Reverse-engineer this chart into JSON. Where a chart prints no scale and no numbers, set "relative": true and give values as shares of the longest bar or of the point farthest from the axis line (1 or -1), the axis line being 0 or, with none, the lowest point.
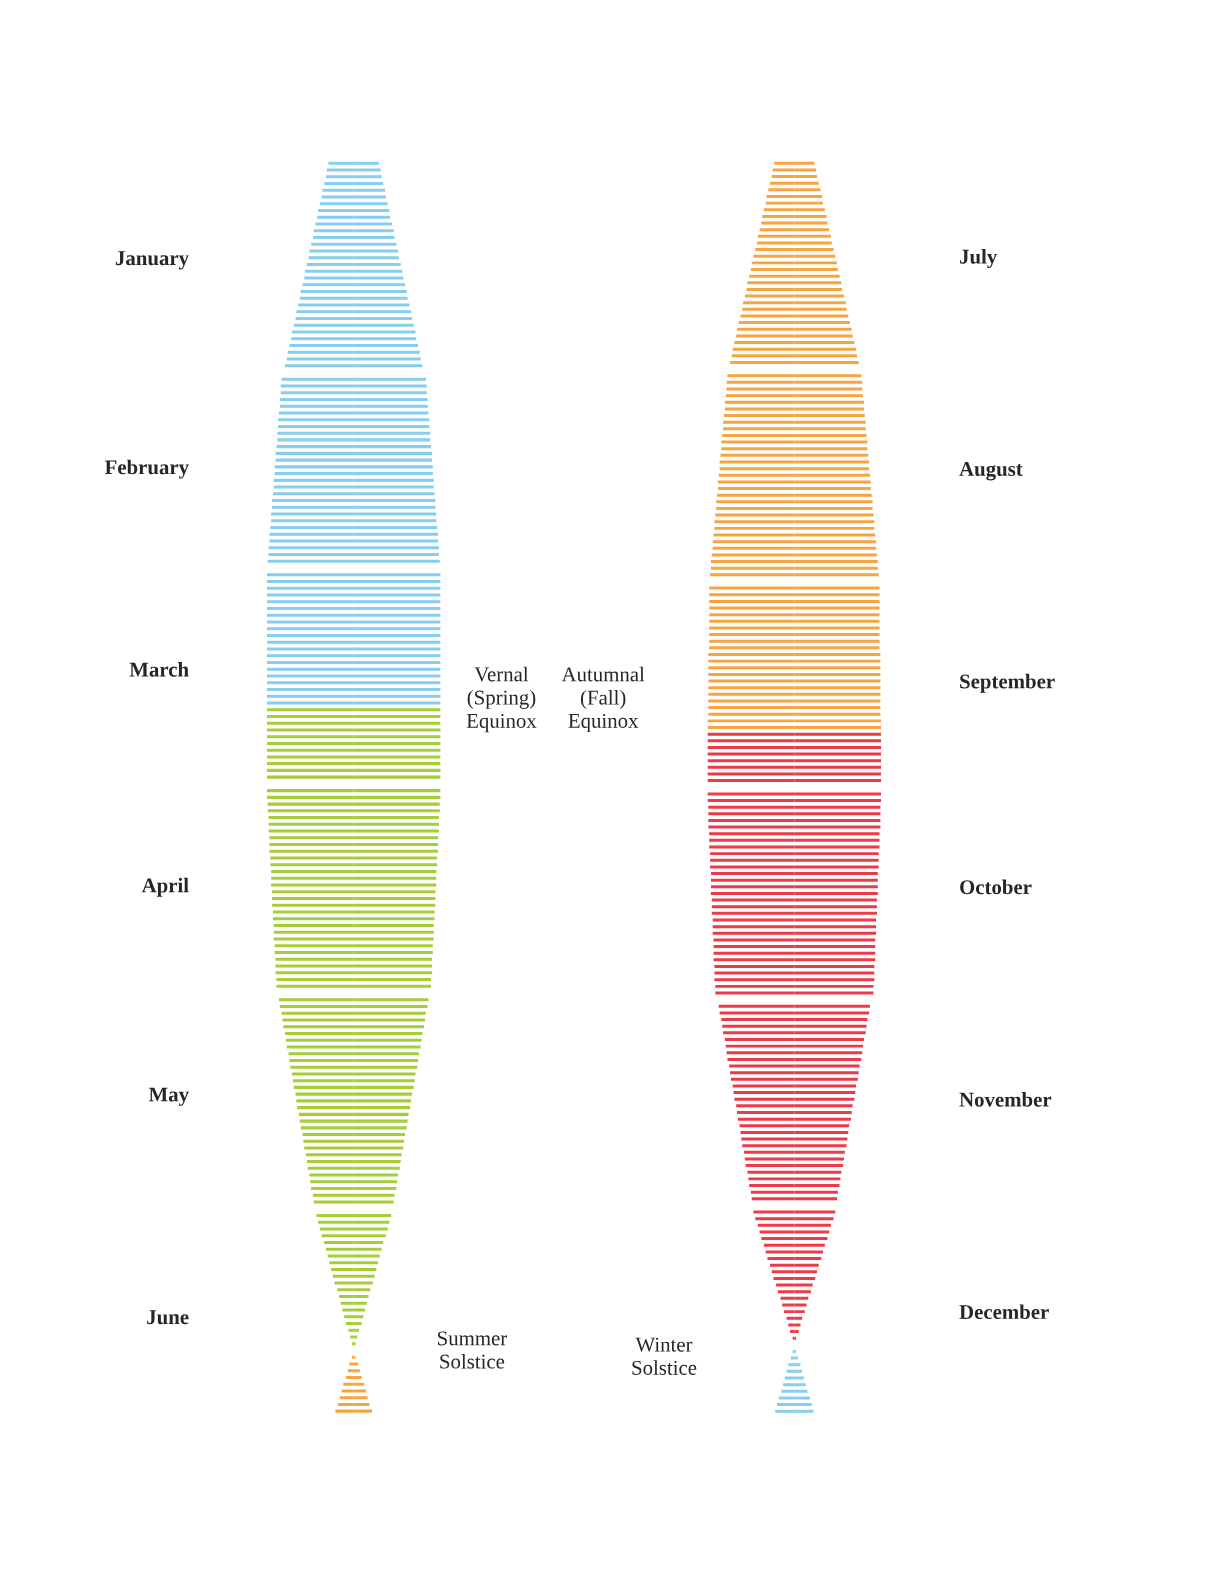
{
  "chart_data": [
    {
      "type": "bar",
      "orientation": "horizontal",
      "relative": true,
      "grid": false,
      "legend": false,
      "categories": [
        null,
        null,
        null,
        null,
        null,
        null,
        null,
        null,
        null,
        null,
        null,
        null,
        null,
        null,
        "January",
        null,
        null,
        null,
        null,
        null,
        null,
        null,
        null,
        null,
        null,
        null,
        null,
        null,
        null,
        null,
        null,
        null,
        null,
        null,
        null,
        null,
        null,
        null,
        null,
        null,
        null,
        null,
        null,
        null,
        null,
        "February",
        null,
        null,
        null,
        null,
        null,
        null,
        null,
        null,
        null,
        null,
        null,
        null,
        null,
        null,
        null,
        null,
        null,
        null,
        null,
        null,
        null,
        null,
        null,
        null,
        null,
        null,
        null,
        null,
        null,
        "March",
        null,
        null,
        null,
        null,
        null,
        null,
        null,
        null,
        null,
        null,
        null,
        null,
        null,
        null,
        null,
        null,
        null,
        null,
        null,
        null,
        null,
        null,
        null,
        null,
        null,
        null,
        null,
        null,
        null,
        null,
        null,
        "April",
        null,
        null,
        null,
        null,
        null,
        null,
        null,
        null,
        null,
        null,
        null,
        null,
        null,
        null,
        null,
        null,
        null,
        null,
        null,
        null,
        null,
        null,
        null,
        null,
        null,
        null,
        null,
        null,
        null,
        null,
        "May",
        null,
        null,
        null,
        null,
        null,
        null,
        null,
        null,
        null,
        null,
        null,
        null,
        null,
        null,
        null,
        null,
        null,
        null,
        null,
        null,
        null,
        null,
        null,
        null,
        null,
        null,
        null,
        null,
        null,
        null,
        null,
        null,
        "June",
        null,
        null,
        null,
        null,
        null,
        null,
        null,
        null,
        null,
        null,
        null,
        null,
        null,
        null
      ],
      "series": [
        {
          "values": [
            0.29,
            0.31,
            0.32,
            0.34,
            0.36,
            0.37,
            0.39,
            0.41,
            0.42,
            0.44,
            0.46,
            0.47,
            0.49,
            0.51,
            0.52,
            0.54,
            0.56,
            0.57,
            0.59,
            0.61,
            0.62,
            0.64,
            0.66,
            0.67,
            0.69,
            0.71,
            0.72,
            0.74,
            0.76,
            0.77,
            0.79,
            null,
            0.83,
            0.84,
            0.84,
            0.85,
            0.85,
            0.86,
            0.87,
            0.87,
            0.88,
            0.88,
            0.89,
            0.9,
            0.9,
            0.91,
            0.91,
            0.92,
            0.92,
            0.93,
            0.94,
            0.94,
            0.95,
            0.95,
            0.96,
            0.97,
            0.97,
            0.98,
            0.98,
            0.99,
            null,
            1,
            1,
            1,
            1,
            1,
            1,
            1,
            1,
            1,
            1,
            1,
            1,
            1,
            1,
            1,
            1,
            1,
            1,
            1,
            1,
            1,
            1,
            1,
            1,
            1,
            1,
            1,
            1,
            1,
            1,
            1,
            null,
            1,
            1,
            0.99,
            0.99,
            0.98,
            0.98,
            0.98,
            0.97,
            0.97,
            0.97,
            0.96,
            0.96,
            0.95,
            0.95,
            0.95,
            0.94,
            0.94,
            0.94,
            0.93,
            0.93,
            0.92,
            0.92,
            0.92,
            0.91,
            0.91,
            0.9,
            0.9,
            0.9,
            0.89,
            0.89,
            null,
            0.86,
            0.85,
            0.83,
            0.82,
            0.81,
            0.79,
            0.78,
            0.77,
            0.75,
            0.74,
            0.73,
            0.71,
            0.7,
            0.69,
            0.67,
            0.66,
            0.65,
            0.63,
            0.62,
            0.61,
            0.59,
            0.58,
            0.57,
            0.55,
            0.54,
            0.53,
            0.51,
            0.5,
            0.49,
            0.47,
            0.46,
            null,
            0.43,
            0.41,
            0.39,
            0.37,
            0.34,
            0.32,
            0.3,
            0.28,
            0.26,
            0.24,
            0.22,
            0.19,
            0.17,
            0.15,
            0.13,
            0.11,
            0.09,
            0.06,
            0.04,
            0.02,
            0,
            0.02,
            0.05,
            0.07,
            0.09,
            0.12,
            0.14,
            0.16,
            0.18,
            0.21
          ],
          "colors": [
            "#87cdee",
            "#87cdee",
            "#87cdee",
            "#87cdee",
            "#87cdee",
            "#87cdee",
            "#87cdee",
            "#87cdee",
            "#87cdee",
            "#87cdee",
            "#87cdee",
            "#87cdee",
            "#87cdee",
            "#87cdee",
            "#87cdee",
            "#87cdee",
            "#87cdee",
            "#87cdee",
            "#87cdee",
            "#87cdee",
            "#87cdee",
            "#87cdee",
            "#87cdee",
            "#87cdee",
            "#87cdee",
            "#87cdee",
            "#87cdee",
            "#87cdee",
            "#87cdee",
            "#87cdee",
            "#87cdee",
            null,
            "#87cdee",
            "#87cdee",
            "#87cdee",
            "#87cdee",
            "#87cdee",
            "#87cdee",
            "#87cdee",
            "#87cdee",
            "#87cdee",
            "#87cdee",
            "#87cdee",
            "#87cdee",
            "#87cdee",
            "#87cdee",
            "#87cdee",
            "#87cdee",
            "#87cdee",
            "#87cdee",
            "#87cdee",
            "#87cdee",
            "#87cdee",
            "#87cdee",
            "#87cdee",
            "#87cdee",
            "#87cdee",
            "#87cdee",
            "#87cdee",
            "#87cdee",
            null,
            "#87cdee",
            "#87cdee",
            "#87cdee",
            "#87cdee",
            "#87cdee",
            "#87cdee",
            "#87cdee",
            "#87cdee",
            "#87cdee",
            "#87cdee",
            "#87cdee",
            "#87cdee",
            "#87cdee",
            "#87cdee",
            "#87cdee",
            "#87cdee",
            "#87cdee",
            "#87cdee",
            "#87cdee",
            "#87cdee",
            "#a6ce39",
            "#a6ce39",
            "#a6ce39",
            "#a6ce39",
            "#a6ce39",
            "#a6ce39",
            "#a6ce39",
            "#a6ce39",
            "#a6ce39",
            "#a6ce39",
            "#a6ce39",
            null,
            "#a6ce39",
            "#a6ce39",
            "#a6ce39",
            "#a6ce39",
            "#a6ce39",
            "#a6ce39",
            "#a6ce39",
            "#a6ce39",
            "#a6ce39",
            "#a6ce39",
            "#a6ce39",
            "#a6ce39",
            "#a6ce39",
            "#a6ce39",
            "#a6ce39",
            "#a6ce39",
            "#a6ce39",
            "#a6ce39",
            "#a6ce39",
            "#a6ce39",
            "#a6ce39",
            "#a6ce39",
            "#a6ce39",
            "#a6ce39",
            "#a6ce39",
            "#a6ce39",
            "#a6ce39",
            "#a6ce39",
            "#a6ce39",
            "#a6ce39",
            null,
            "#a6ce39",
            "#a6ce39",
            "#a6ce39",
            "#a6ce39",
            "#a6ce39",
            "#a6ce39",
            "#a6ce39",
            "#a6ce39",
            "#a6ce39",
            "#a6ce39",
            "#a6ce39",
            "#a6ce39",
            "#a6ce39",
            "#a6ce39",
            "#a6ce39",
            "#a6ce39",
            "#a6ce39",
            "#a6ce39",
            "#a6ce39",
            "#a6ce39",
            "#a6ce39",
            "#a6ce39",
            "#a6ce39",
            "#a6ce39",
            "#a6ce39",
            "#a6ce39",
            "#a6ce39",
            "#a6ce39",
            "#a6ce39",
            "#a6ce39",
            "#a6ce39",
            null,
            "#a6ce39",
            "#a6ce39",
            "#a6ce39",
            "#a6ce39",
            "#a6ce39",
            "#a6ce39",
            "#a6ce39",
            "#a6ce39",
            "#a6ce39",
            "#a6ce39",
            "#a6ce39",
            "#a6ce39",
            "#a6ce39",
            "#a6ce39",
            "#a6ce39",
            "#a6ce39",
            "#a6ce39",
            "#a6ce39",
            "#a6ce39",
            "#a6ce39",
            "#f7a541",
            "#f7a541",
            "#f7a541",
            "#f7a541",
            "#f7a541",
            "#f7a541",
            "#f7a541",
            "#f7a541",
            "#f7a541",
            "#f7a541"
          ]
        },
        {
          "values": [
            -0.29,
            -0.31,
            -0.32,
            -0.34,
            -0.36,
            -0.37,
            -0.39,
            -0.41,
            -0.42,
            -0.44,
            -0.46,
            -0.47,
            -0.49,
            -0.51,
            -0.52,
            -0.54,
            -0.56,
            -0.57,
            -0.59,
            -0.61,
            -0.62,
            -0.64,
            -0.66,
            -0.67,
            -0.69,
            -0.71,
            -0.72,
            -0.74,
            -0.76,
            -0.77,
            -0.79,
            null,
            -0.83,
            -0.84,
            -0.84,
            -0.85,
            -0.85,
            -0.86,
            -0.87,
            -0.87,
            -0.88,
            -0.88,
            -0.89,
            -0.9,
            -0.9,
            -0.91,
            -0.91,
            -0.92,
            -0.92,
            -0.93,
            -0.94,
            -0.94,
            -0.95,
            -0.95,
            -0.96,
            -0.97,
            -0.97,
            -0.98,
            -0.98,
            -0.99,
            null,
            -1,
            -1,
            -1,
            -1,
            -1,
            -1,
            -1,
            -1,
            -1,
            -1,
            -1,
            -1,
            -1,
            -1,
            -1,
            -1,
            -1,
            -1,
            -1,
            -1,
            -1,
            -1,
            -1,
            -1,
            -1,
            -1,
            -1,
            -1,
            -1,
            -1,
            -1,
            null,
            -1,
            -1,
            -0.99,
            -0.99,
            -0.98,
            -0.98,
            -0.98,
            -0.97,
            -0.97,
            -0.97,
            -0.96,
            -0.96,
            -0.95,
            -0.95,
            -0.95,
            -0.94,
            -0.94,
            -0.94,
            -0.93,
            -0.93,
            -0.92,
            -0.92,
            -0.92,
            -0.91,
            -0.91,
            -0.9,
            -0.9,
            -0.9,
            -0.89,
            -0.89,
            null,
            -0.86,
            -0.85,
            -0.83,
            -0.82,
            -0.81,
            -0.79,
            -0.78,
            -0.77,
            -0.75,
            -0.74,
            -0.73,
            -0.71,
            -0.7,
            -0.69,
            -0.67,
            -0.66,
            -0.65,
            -0.63,
            -0.62,
            -0.61,
            -0.59,
            -0.58,
            -0.57,
            -0.55,
            -0.54,
            -0.53,
            -0.51,
            -0.5,
            -0.49,
            -0.47,
            -0.46,
            null,
            -0.43,
            -0.41,
            -0.39,
            -0.37,
            -0.34,
            -0.32,
            -0.3,
            -0.28,
            -0.26,
            -0.24,
            -0.22,
            -0.19,
            -0.17,
            -0.15,
            -0.13,
            -0.11,
            -0.09,
            -0.06,
            -0.04,
            -0.02,
            0,
            -0.02,
            -0.05,
            -0.07,
            -0.09,
            -0.12,
            -0.14,
            -0.16,
            -0.18,
            -0.21
          ],
          "colors": [
            "#87cdee",
            "#87cdee",
            "#87cdee",
            "#87cdee",
            "#87cdee",
            "#87cdee",
            "#87cdee",
            "#87cdee",
            "#87cdee",
            "#87cdee",
            "#87cdee",
            "#87cdee",
            "#87cdee",
            "#87cdee",
            "#87cdee",
            "#87cdee",
            "#87cdee",
            "#87cdee",
            "#87cdee",
            "#87cdee",
            "#87cdee",
            "#87cdee",
            "#87cdee",
            "#87cdee",
            "#87cdee",
            "#87cdee",
            "#87cdee",
            "#87cdee",
            "#87cdee",
            "#87cdee",
            "#87cdee",
            null,
            "#87cdee",
            "#87cdee",
            "#87cdee",
            "#87cdee",
            "#87cdee",
            "#87cdee",
            "#87cdee",
            "#87cdee",
            "#87cdee",
            "#87cdee",
            "#87cdee",
            "#87cdee",
            "#87cdee",
            "#87cdee",
            "#87cdee",
            "#87cdee",
            "#87cdee",
            "#87cdee",
            "#87cdee",
            "#87cdee",
            "#87cdee",
            "#87cdee",
            "#87cdee",
            "#87cdee",
            "#87cdee",
            "#87cdee",
            "#87cdee",
            "#87cdee",
            null,
            "#87cdee",
            "#87cdee",
            "#87cdee",
            "#87cdee",
            "#87cdee",
            "#87cdee",
            "#87cdee",
            "#87cdee",
            "#87cdee",
            "#87cdee",
            "#87cdee",
            "#87cdee",
            "#87cdee",
            "#87cdee",
            "#87cdee",
            "#87cdee",
            "#87cdee",
            "#87cdee",
            "#87cdee",
            "#87cdee",
            "#a6ce39",
            "#a6ce39",
            "#a6ce39",
            "#a6ce39",
            "#a6ce39",
            "#a6ce39",
            "#a6ce39",
            "#a6ce39",
            "#a6ce39",
            "#a6ce39",
            "#a6ce39",
            null,
            "#a6ce39",
            "#a6ce39",
            "#a6ce39",
            "#a6ce39",
            "#a6ce39",
            "#a6ce39",
            "#a6ce39",
            "#a6ce39",
            "#a6ce39",
            "#a6ce39",
            "#a6ce39",
            "#a6ce39",
            "#a6ce39",
            "#a6ce39",
            "#a6ce39",
            "#a6ce39",
            "#a6ce39",
            "#a6ce39",
            "#a6ce39",
            "#a6ce39",
            "#a6ce39",
            "#a6ce39",
            "#a6ce39",
            "#a6ce39",
            "#a6ce39",
            "#a6ce39",
            "#a6ce39",
            "#a6ce39",
            "#a6ce39",
            "#a6ce39",
            null,
            "#a6ce39",
            "#a6ce39",
            "#a6ce39",
            "#a6ce39",
            "#a6ce39",
            "#a6ce39",
            "#a6ce39",
            "#a6ce39",
            "#a6ce39",
            "#a6ce39",
            "#a6ce39",
            "#a6ce39",
            "#a6ce39",
            "#a6ce39",
            "#a6ce39",
            "#a6ce39",
            "#a6ce39",
            "#a6ce39",
            "#a6ce39",
            "#a6ce39",
            "#a6ce39",
            "#a6ce39",
            "#a6ce39",
            "#a6ce39",
            "#a6ce39",
            "#a6ce39",
            "#a6ce39",
            "#a6ce39",
            "#a6ce39",
            "#a6ce39",
            "#a6ce39",
            null,
            "#a6ce39",
            "#a6ce39",
            "#a6ce39",
            "#a6ce39",
            "#a6ce39",
            "#a6ce39",
            "#a6ce39",
            "#a6ce39",
            "#a6ce39",
            "#a6ce39",
            "#a6ce39",
            "#a6ce39",
            "#a6ce39",
            "#a6ce39",
            "#a6ce39",
            "#a6ce39",
            "#a6ce39",
            "#a6ce39",
            "#a6ce39",
            "#a6ce39",
            "#f7a541",
            "#f7a541",
            "#f7a541",
            "#f7a541",
            "#f7a541",
            "#f7a541",
            "#f7a541",
            "#f7a541",
            "#f7a541",
            "#f7a541"
          ]
        }
      ],
      "annotations": [
        "Vernal\n(Spring)\nEquinox",
        "Summer\nSolstice"
      ]
    },
    {
      "type": "bar",
      "orientation": "horizontal",
      "relative": true,
      "grid": false,
      "legend": false,
      "categories": [
        null,
        null,
        null,
        null,
        null,
        null,
        null,
        null,
        null,
        null,
        null,
        null,
        null,
        null,
        "July",
        null,
        null,
        null,
        null,
        null,
        null,
        null,
        null,
        null,
        null,
        null,
        null,
        null,
        null,
        null,
        null,
        null,
        null,
        null,
        null,
        null,
        null,
        null,
        null,
        null,
        null,
        null,
        null,
        null,
        null,
        null,
        "August",
        null,
        null,
        null,
        null,
        null,
        null,
        null,
        null,
        null,
        null,
        null,
        null,
        null,
        null,
        null,
        null,
        null,
        null,
        null,
        null,
        null,
        null,
        null,
        null,
        null,
        null,
        null,
        null,
        null,
        null,
        null,
        "September",
        null,
        null,
        null,
        null,
        null,
        null,
        null,
        null,
        null,
        null,
        null,
        null,
        null,
        null,
        null,
        null,
        null,
        null,
        null,
        null,
        null,
        null,
        null,
        null,
        null,
        null,
        null,
        null,
        null,
        null,
        "October",
        null,
        null,
        null,
        null,
        null,
        null,
        null,
        null,
        null,
        null,
        null,
        null,
        null,
        null,
        null,
        null,
        null,
        null,
        null,
        null,
        null,
        null,
        null,
        null,
        null,
        null,
        null,
        null,
        null,
        null,
        null,
        "November",
        null,
        null,
        null,
        null,
        null,
        null,
        null,
        null,
        null,
        null,
        null,
        null,
        null,
        null,
        null,
        null,
        null,
        null,
        null,
        null,
        null,
        null,
        null,
        null,
        null,
        null,
        null,
        null,
        null,
        null,
        null,
        "December",
        null,
        null,
        null,
        null,
        null,
        null,
        null,
        null,
        null,
        null,
        null,
        null,
        null,
        null,
        null
      ],
      "series": [
        {
          "values": [
            0.23,
            0.25,
            0.26,
            0.28,
            0.3,
            0.32,
            0.33,
            0.35,
            0.37,
            0.38,
            0.4,
            0.42,
            0.43,
            0.45,
            0.47,
            0.49,
            0.5,
            0.52,
            0.54,
            0.55,
            0.57,
            0.59,
            0.6,
            0.62,
            0.64,
            0.66,
            0.67,
            0.69,
            0.71,
            0.72,
            0.74,
            null,
            0.77,
            0.78,
            0.78,
            0.79,
            0.8,
            0.8,
            0.81,
            0.82,
            0.82,
            0.83,
            0.84,
            0.84,
            0.85,
            0.86,
            0.86,
            0.87,
            0.88,
            0.88,
            0.89,
            0.9,
            0.9,
            0.91,
            0.92,
            0.92,
            0.93,
            0.94,
            0.94,
            0.95,
            0.96,
            0.96,
            0.97,
            null,
            0.98,
            0.98,
            0.98,
            0.98,
            0.98,
            0.98,
            0.98,
            0.98,
            0.98,
            0.98,
            0.99,
            0.99,
            0.99,
            0.99,
            0.99,
            0.99,
            0.99,
            0.99,
            0.99,
            0.99,
            1,
            1,
            1,
            1,
            1,
            1,
            1,
            1,
            1,
            1,
            null,
            1,
            1,
            0.99,
            0.99,
            0.99,
            0.99,
            0.98,
            0.98,
            0.98,
            0.97,
            0.97,
            0.97,
            0.96,
            0.96,
            0.96,
            0.96,
            0.95,
            0.95,
            0.95,
            0.94,
            0.94,
            0.94,
            0.93,
            0.93,
            0.93,
            0.93,
            0.92,
            0.92,
            0.92,
            0.91,
            0.91,
            null,
            0.87,
            0.86,
            0.84,
            0.83,
            0.82,
            0.8,
            0.79,
            0.78,
            0.77,
            0.75,
            0.74,
            0.73,
            0.71,
            0.7,
            0.69,
            0.67,
            0.66,
            0.65,
            0.63,
            0.62,
            0.61,
            0.6,
            0.58,
            0.57,
            0.56,
            0.54,
            0.53,
            0.52,
            0.5,
            0.49,
            null,
            0.47,
            0.45,
            0.42,
            0.4,
            0.38,
            0.35,
            0.33,
            0.31,
            0.28,
            0.26,
            0.24,
            0.21,
            0.19,
            0.16,
            0.14,
            0.12,
            0.09,
            0.07,
            0.05,
            0.02,
            0,
            0.02,
            0.04,
            0.07,
            0.09,
            0.11,
            0.13,
            0.15,
            0.18,
            0.2,
            0.22
          ],
          "colors": [
            "#f7a541",
            "#f7a541",
            "#f7a541",
            "#f7a541",
            "#f7a541",
            "#f7a541",
            "#f7a541",
            "#f7a541",
            "#f7a541",
            "#f7a541",
            "#f7a541",
            "#f7a541",
            "#f7a541",
            "#f7a541",
            "#f7a541",
            "#f7a541",
            "#f7a541",
            "#f7a541",
            "#f7a541",
            "#f7a541",
            "#f7a541",
            "#f7a541",
            "#f7a541",
            "#f7a541",
            "#f7a541",
            "#f7a541",
            "#f7a541",
            "#f7a541",
            "#f7a541",
            "#f7a541",
            "#f7a541",
            null,
            "#f7a541",
            "#f7a541",
            "#f7a541",
            "#f7a541",
            "#f7a541",
            "#f7a541",
            "#f7a541",
            "#f7a541",
            "#f7a541",
            "#f7a541",
            "#f7a541",
            "#f7a541",
            "#f7a541",
            "#f7a541",
            "#f7a541",
            "#f7a541",
            "#f7a541",
            "#f7a541",
            "#f7a541",
            "#f7a541",
            "#f7a541",
            "#f7a541",
            "#f7a541",
            "#f7a541",
            "#f7a541",
            "#f7a541",
            "#f7a541",
            "#f7a541",
            "#f7a541",
            "#f7a541",
            "#f7a541",
            null,
            "#f7a541",
            "#f7a541",
            "#f7a541",
            "#f7a541",
            "#f7a541",
            "#f7a541",
            "#f7a541",
            "#f7a541",
            "#f7a541",
            "#f7a541",
            "#f7a541",
            "#f7a541",
            "#f7a541",
            "#f7a541",
            "#f7a541",
            "#f7a541",
            "#f7a541",
            "#f7a541",
            "#f7a541",
            "#f7a541",
            "#f7a541",
            "#f7a541",
            "#ed3a48",
            "#ed3a48",
            "#ed3a48",
            "#ed3a48",
            "#ed3a48",
            "#ed3a48",
            "#ed3a48",
            "#ed3a48",
            null,
            "#ed3a48",
            "#ed3a48",
            "#ed3a48",
            "#ed3a48",
            "#ed3a48",
            "#ed3a48",
            "#ed3a48",
            "#ed3a48",
            "#ed3a48",
            "#ed3a48",
            "#ed3a48",
            "#ed3a48",
            "#ed3a48",
            "#ed3a48",
            "#ed3a48",
            "#ed3a48",
            "#ed3a48",
            "#ed3a48",
            "#ed3a48",
            "#ed3a48",
            "#ed3a48",
            "#ed3a48",
            "#ed3a48",
            "#ed3a48",
            "#ed3a48",
            "#ed3a48",
            "#ed3a48",
            "#ed3a48",
            "#ed3a48",
            "#ed3a48",
            "#ed3a48",
            null,
            "#ed3a48",
            "#ed3a48",
            "#ed3a48",
            "#ed3a48",
            "#ed3a48",
            "#ed3a48",
            "#ed3a48",
            "#ed3a48",
            "#ed3a48",
            "#ed3a48",
            "#ed3a48",
            "#ed3a48",
            "#ed3a48",
            "#ed3a48",
            "#ed3a48",
            "#ed3a48",
            "#ed3a48",
            "#ed3a48",
            "#ed3a48",
            "#ed3a48",
            "#ed3a48",
            "#ed3a48",
            "#ed3a48",
            "#ed3a48",
            "#ed3a48",
            "#ed3a48",
            "#ed3a48",
            "#ed3a48",
            "#ed3a48",
            "#ed3a48",
            null,
            "#ed3a48",
            "#ed3a48",
            "#ed3a48",
            "#ed3a48",
            "#ed3a48",
            "#ed3a48",
            "#ed3a48",
            "#ed3a48",
            "#ed3a48",
            "#ed3a48",
            "#ed3a48",
            "#ed3a48",
            "#ed3a48",
            "#ed3a48",
            "#ed3a48",
            "#ed3a48",
            "#ed3a48",
            "#ed3a48",
            "#ed3a48",
            "#ed3a48",
            "#ed3a48",
            "#87cdee",
            "#87cdee",
            "#87cdee",
            "#87cdee",
            "#87cdee",
            "#87cdee",
            "#87cdee",
            "#87cdee",
            "#87cdee",
            "#87cdee"
          ]
        },
        {
          "values": [
            -0.23,
            -0.25,
            -0.26,
            -0.28,
            -0.3,
            -0.32,
            -0.33,
            -0.35,
            -0.37,
            -0.38,
            -0.4,
            -0.42,
            -0.43,
            -0.45,
            -0.47,
            -0.49,
            -0.5,
            -0.52,
            -0.54,
            -0.55,
            -0.57,
            -0.59,
            -0.6,
            -0.62,
            -0.64,
            -0.66,
            -0.67,
            -0.69,
            -0.71,
            -0.72,
            -0.74,
            null,
            -0.77,
            -0.78,
            -0.78,
            -0.79,
            -0.8,
            -0.8,
            -0.81,
            -0.82,
            -0.82,
            -0.83,
            -0.84,
            -0.84,
            -0.85,
            -0.86,
            -0.86,
            -0.87,
            -0.88,
            -0.88,
            -0.89,
            -0.9,
            -0.9,
            -0.91,
            -0.92,
            -0.92,
            -0.93,
            -0.94,
            -0.94,
            -0.95,
            -0.96,
            -0.96,
            -0.97,
            null,
            -0.98,
            -0.98,
            -0.98,
            -0.98,
            -0.98,
            -0.98,
            -0.98,
            -0.98,
            -0.98,
            -0.98,
            -0.99,
            -0.99,
            -0.99,
            -0.99,
            -0.99,
            -0.99,
            -0.99,
            -0.99,
            -0.99,
            -0.99,
            -1,
            -1,
            -1,
            -1,
            -1,
            -1,
            -1,
            -1,
            -1,
            -1,
            null,
            -1,
            -1,
            -0.99,
            -0.99,
            -0.99,
            -0.99,
            -0.98,
            -0.98,
            -0.98,
            -0.97,
            -0.97,
            -0.97,
            -0.96,
            -0.96,
            -0.96,
            -0.96,
            -0.95,
            -0.95,
            -0.95,
            -0.94,
            -0.94,
            -0.94,
            -0.93,
            -0.93,
            -0.93,
            -0.93,
            -0.92,
            -0.92,
            -0.92,
            -0.91,
            -0.91,
            null,
            -0.87,
            -0.86,
            -0.84,
            -0.83,
            -0.82,
            -0.8,
            -0.79,
            -0.78,
            -0.77,
            -0.75,
            -0.74,
            -0.73,
            -0.71,
            -0.7,
            -0.69,
            -0.67,
            -0.66,
            -0.65,
            -0.63,
            -0.62,
            -0.61,
            -0.6,
            -0.58,
            -0.57,
            -0.56,
            -0.54,
            -0.53,
            -0.52,
            -0.5,
            -0.49,
            null,
            -0.47,
            -0.45,
            -0.42,
            -0.4,
            -0.38,
            -0.35,
            -0.33,
            -0.31,
            -0.28,
            -0.26,
            -0.24,
            -0.21,
            -0.19,
            -0.16,
            -0.14,
            -0.12,
            -0.09,
            -0.07,
            -0.05,
            -0.02,
            0,
            -0.02,
            -0.04,
            -0.07,
            -0.09,
            -0.11,
            -0.13,
            -0.15,
            -0.18,
            -0.2,
            -0.22
          ],
          "colors": [
            "#f7a541",
            "#f7a541",
            "#f7a541",
            "#f7a541",
            "#f7a541",
            "#f7a541",
            "#f7a541",
            "#f7a541",
            "#f7a541",
            "#f7a541",
            "#f7a541",
            "#f7a541",
            "#f7a541",
            "#f7a541",
            "#f7a541",
            "#f7a541",
            "#f7a541",
            "#f7a541",
            "#f7a541",
            "#f7a541",
            "#f7a541",
            "#f7a541",
            "#f7a541",
            "#f7a541",
            "#f7a541",
            "#f7a541",
            "#f7a541",
            "#f7a541",
            "#f7a541",
            "#f7a541",
            "#f7a541",
            null,
            "#f7a541",
            "#f7a541",
            "#f7a541",
            "#f7a541",
            "#f7a541",
            "#f7a541",
            "#f7a541",
            "#f7a541",
            "#f7a541",
            "#f7a541",
            "#f7a541",
            "#f7a541",
            "#f7a541",
            "#f7a541",
            "#f7a541",
            "#f7a541",
            "#f7a541",
            "#f7a541",
            "#f7a541",
            "#f7a541",
            "#f7a541",
            "#f7a541",
            "#f7a541",
            "#f7a541",
            "#f7a541",
            "#f7a541",
            "#f7a541",
            "#f7a541",
            "#f7a541",
            "#f7a541",
            "#f7a541",
            null,
            "#f7a541",
            "#f7a541",
            "#f7a541",
            "#f7a541",
            "#f7a541",
            "#f7a541",
            "#f7a541",
            "#f7a541",
            "#f7a541",
            "#f7a541",
            "#f7a541",
            "#f7a541",
            "#f7a541",
            "#f7a541",
            "#f7a541",
            "#f7a541",
            "#f7a541",
            "#f7a541",
            "#f7a541",
            "#f7a541",
            "#f7a541",
            "#f7a541",
            "#ed3a48",
            "#ed3a48",
            "#ed3a48",
            "#ed3a48",
            "#ed3a48",
            "#ed3a48",
            "#ed3a48",
            "#ed3a48",
            null,
            "#ed3a48",
            "#ed3a48",
            "#ed3a48",
            "#ed3a48",
            "#ed3a48",
            "#ed3a48",
            "#ed3a48",
            "#ed3a48",
            "#ed3a48",
            "#ed3a48",
            "#ed3a48",
            "#ed3a48",
            "#ed3a48",
            "#ed3a48",
            "#ed3a48",
            "#ed3a48",
            "#ed3a48",
            "#ed3a48",
            "#ed3a48",
            "#ed3a48",
            "#ed3a48",
            "#ed3a48",
            "#ed3a48",
            "#ed3a48",
            "#ed3a48",
            "#ed3a48",
            "#ed3a48",
            "#ed3a48",
            "#ed3a48",
            "#ed3a48",
            "#ed3a48",
            null,
            "#ed3a48",
            "#ed3a48",
            "#ed3a48",
            "#ed3a48",
            "#ed3a48",
            "#ed3a48",
            "#ed3a48",
            "#ed3a48",
            "#ed3a48",
            "#ed3a48",
            "#ed3a48",
            "#ed3a48",
            "#ed3a48",
            "#ed3a48",
            "#ed3a48",
            "#ed3a48",
            "#ed3a48",
            "#ed3a48",
            "#ed3a48",
            "#ed3a48",
            "#ed3a48",
            "#ed3a48",
            "#ed3a48",
            "#ed3a48",
            "#ed3a48",
            "#ed3a48",
            "#ed3a48",
            "#ed3a48",
            "#ed3a48",
            "#ed3a48",
            null,
            "#ed3a48",
            "#ed3a48",
            "#ed3a48",
            "#ed3a48",
            "#ed3a48",
            "#ed3a48",
            "#ed3a48",
            "#ed3a48",
            "#ed3a48",
            "#ed3a48",
            "#ed3a48",
            "#ed3a48",
            "#ed3a48",
            "#ed3a48",
            "#ed3a48",
            "#ed3a48",
            "#ed3a48",
            "#ed3a48",
            "#ed3a48",
            "#ed3a48",
            "#ed3a48",
            "#87cdee",
            "#87cdee",
            "#87cdee",
            "#87cdee",
            "#87cdee",
            "#87cdee",
            "#87cdee",
            "#87cdee",
            "#87cdee",
            "#87cdee"
          ]
        }
      ],
      "annotations": [
        "Autumnal\n(Fall)\nEquinox",
        "Winter\nSolstice"
      ]
    }
  ]
}
